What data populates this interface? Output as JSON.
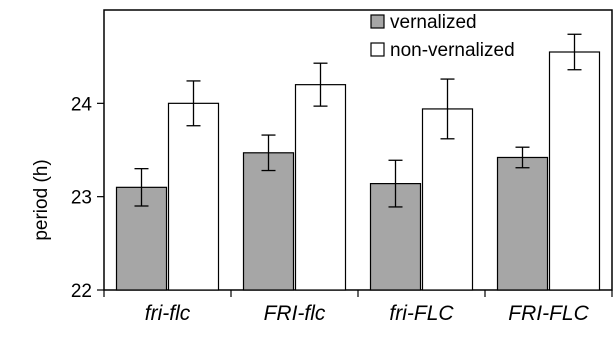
{
  "chart_data": {
    "type": "bar",
    "categories": [
      "fri-flc",
      "FRI-flc",
      "fri-FLC",
      "FRI-FLC"
    ],
    "series": [
      {
        "name": "vernalized",
        "color": "#a6a6a6",
        "values": [
          23.1,
          23.47,
          23.14,
          23.42
        ],
        "errors": [
          0.2,
          0.19,
          0.25,
          0.11
        ]
      },
      {
        "name": "non-vernalized",
        "color": "#ffffff",
        "values": [
          24.0,
          24.2,
          23.94,
          24.55
        ],
        "errors": [
          0.24,
          0.23,
          0.32,
          0.19
        ]
      }
    ],
    "xlabel": "",
    "ylabel": "period (h)",
    "ylim": [
      22,
      25
    ],
    "yticks": [
      22,
      23,
      24
    ],
    "grid": false,
    "legend_position": "top-right"
  }
}
